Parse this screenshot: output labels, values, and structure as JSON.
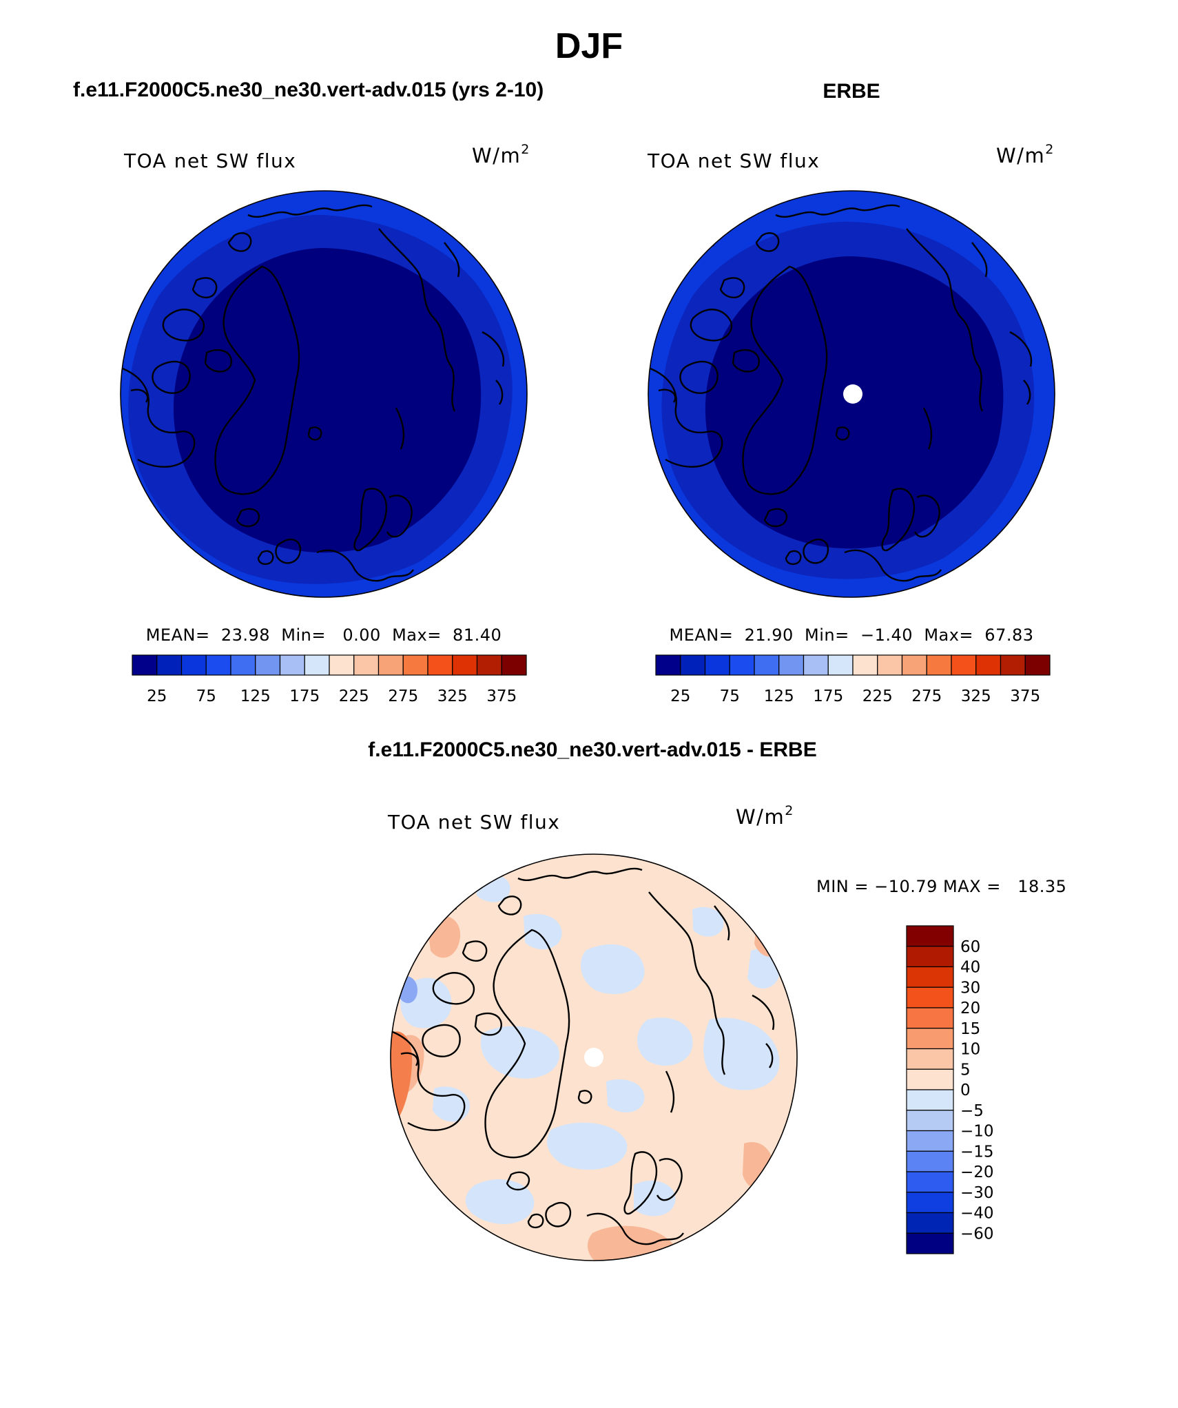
{
  "page": {
    "season_title": "DJF"
  },
  "panels": [
    {
      "id": "model",
      "case_title": "f.e11.F2000C5.ne30_ne30.vert-adv.015 (yrs 2-10)",
      "variable_label": "TOA net SW flux",
      "units_base": "W/m",
      "units_exp": "2",
      "stats_text": "MEAN=  23.98  Min=   0.00  Max=  81.40",
      "stats": {
        "mean": 23.98,
        "min": 0.0,
        "max": 81.4
      },
      "has_pole_hole": false
    },
    {
      "id": "obs",
      "case_title": "ERBE",
      "variable_label": "TOA net SW flux",
      "units_base": "W/m",
      "units_exp": "2",
      "stats_text": "MEAN=  21.90  Min=  −1.40  Max=  67.83",
      "stats": {
        "mean": 21.9,
        "min": -1.4,
        "max": 67.83
      },
      "has_pole_hole": true
    }
  ],
  "abs_colorbar": {
    "colors": [
      "#00008b",
      "#0022bb",
      "#0a36dd",
      "#1a4cf0",
      "#3f6ef2",
      "#7395f2",
      "#a8bff5",
      "#d6e6fa",
      "#fde3cf",
      "#fbc6a8",
      "#f8a278",
      "#f6793f",
      "#f4511a",
      "#de3204",
      "#b21e02",
      "#7c0000"
    ],
    "tick_labels": [
      "25",
      "75",
      "125",
      "175",
      "225",
      "275",
      "325",
      "375"
    ]
  },
  "diff_panel": {
    "case_title": "f.e11.F2000C5.ne30_ne30.vert-adv.015 - ERBE",
    "variable_label": "TOA net SW flux",
    "units_base": "W/m",
    "units_exp": "2",
    "minmax_text": "MIN = −10.79 MAX =   18.35",
    "stats": {
      "min": -10.79,
      "max": 18.35
    }
  },
  "diff_colorbar": {
    "colors_top_to_bottom": [
      "#820000",
      "#b01a00",
      "#dc3505",
      "#f4521b",
      "#f77542",
      "#f89c70",
      "#fbc6a8",
      "#fde3cf",
      "#d6e6fa",
      "#b5cbf4",
      "#8aa8f3",
      "#5c83f3",
      "#2e5cf0",
      "#0f3fe0",
      "#0024b4",
      "#000083"
    ],
    "tick_labels_top_to_bottom": [
      "60",
      "40",
      "30",
      "20",
      "15",
      "10",
      "5",
      "0",
      "−5",
      "−10",
      "−15",
      "−20",
      "−30",
      "−40",
      "−60"
    ]
  },
  "colors": {
    "dark_core": "#00007e",
    "mid_ring": "#0b25bd",
    "outer_ring": "#0a38dc",
    "diff_background": "#fde3cf",
    "diff_blue": "#d3e4fb",
    "diff_salmon": "#f8b797",
    "diff_orange": "#f57f4c"
  }
}
